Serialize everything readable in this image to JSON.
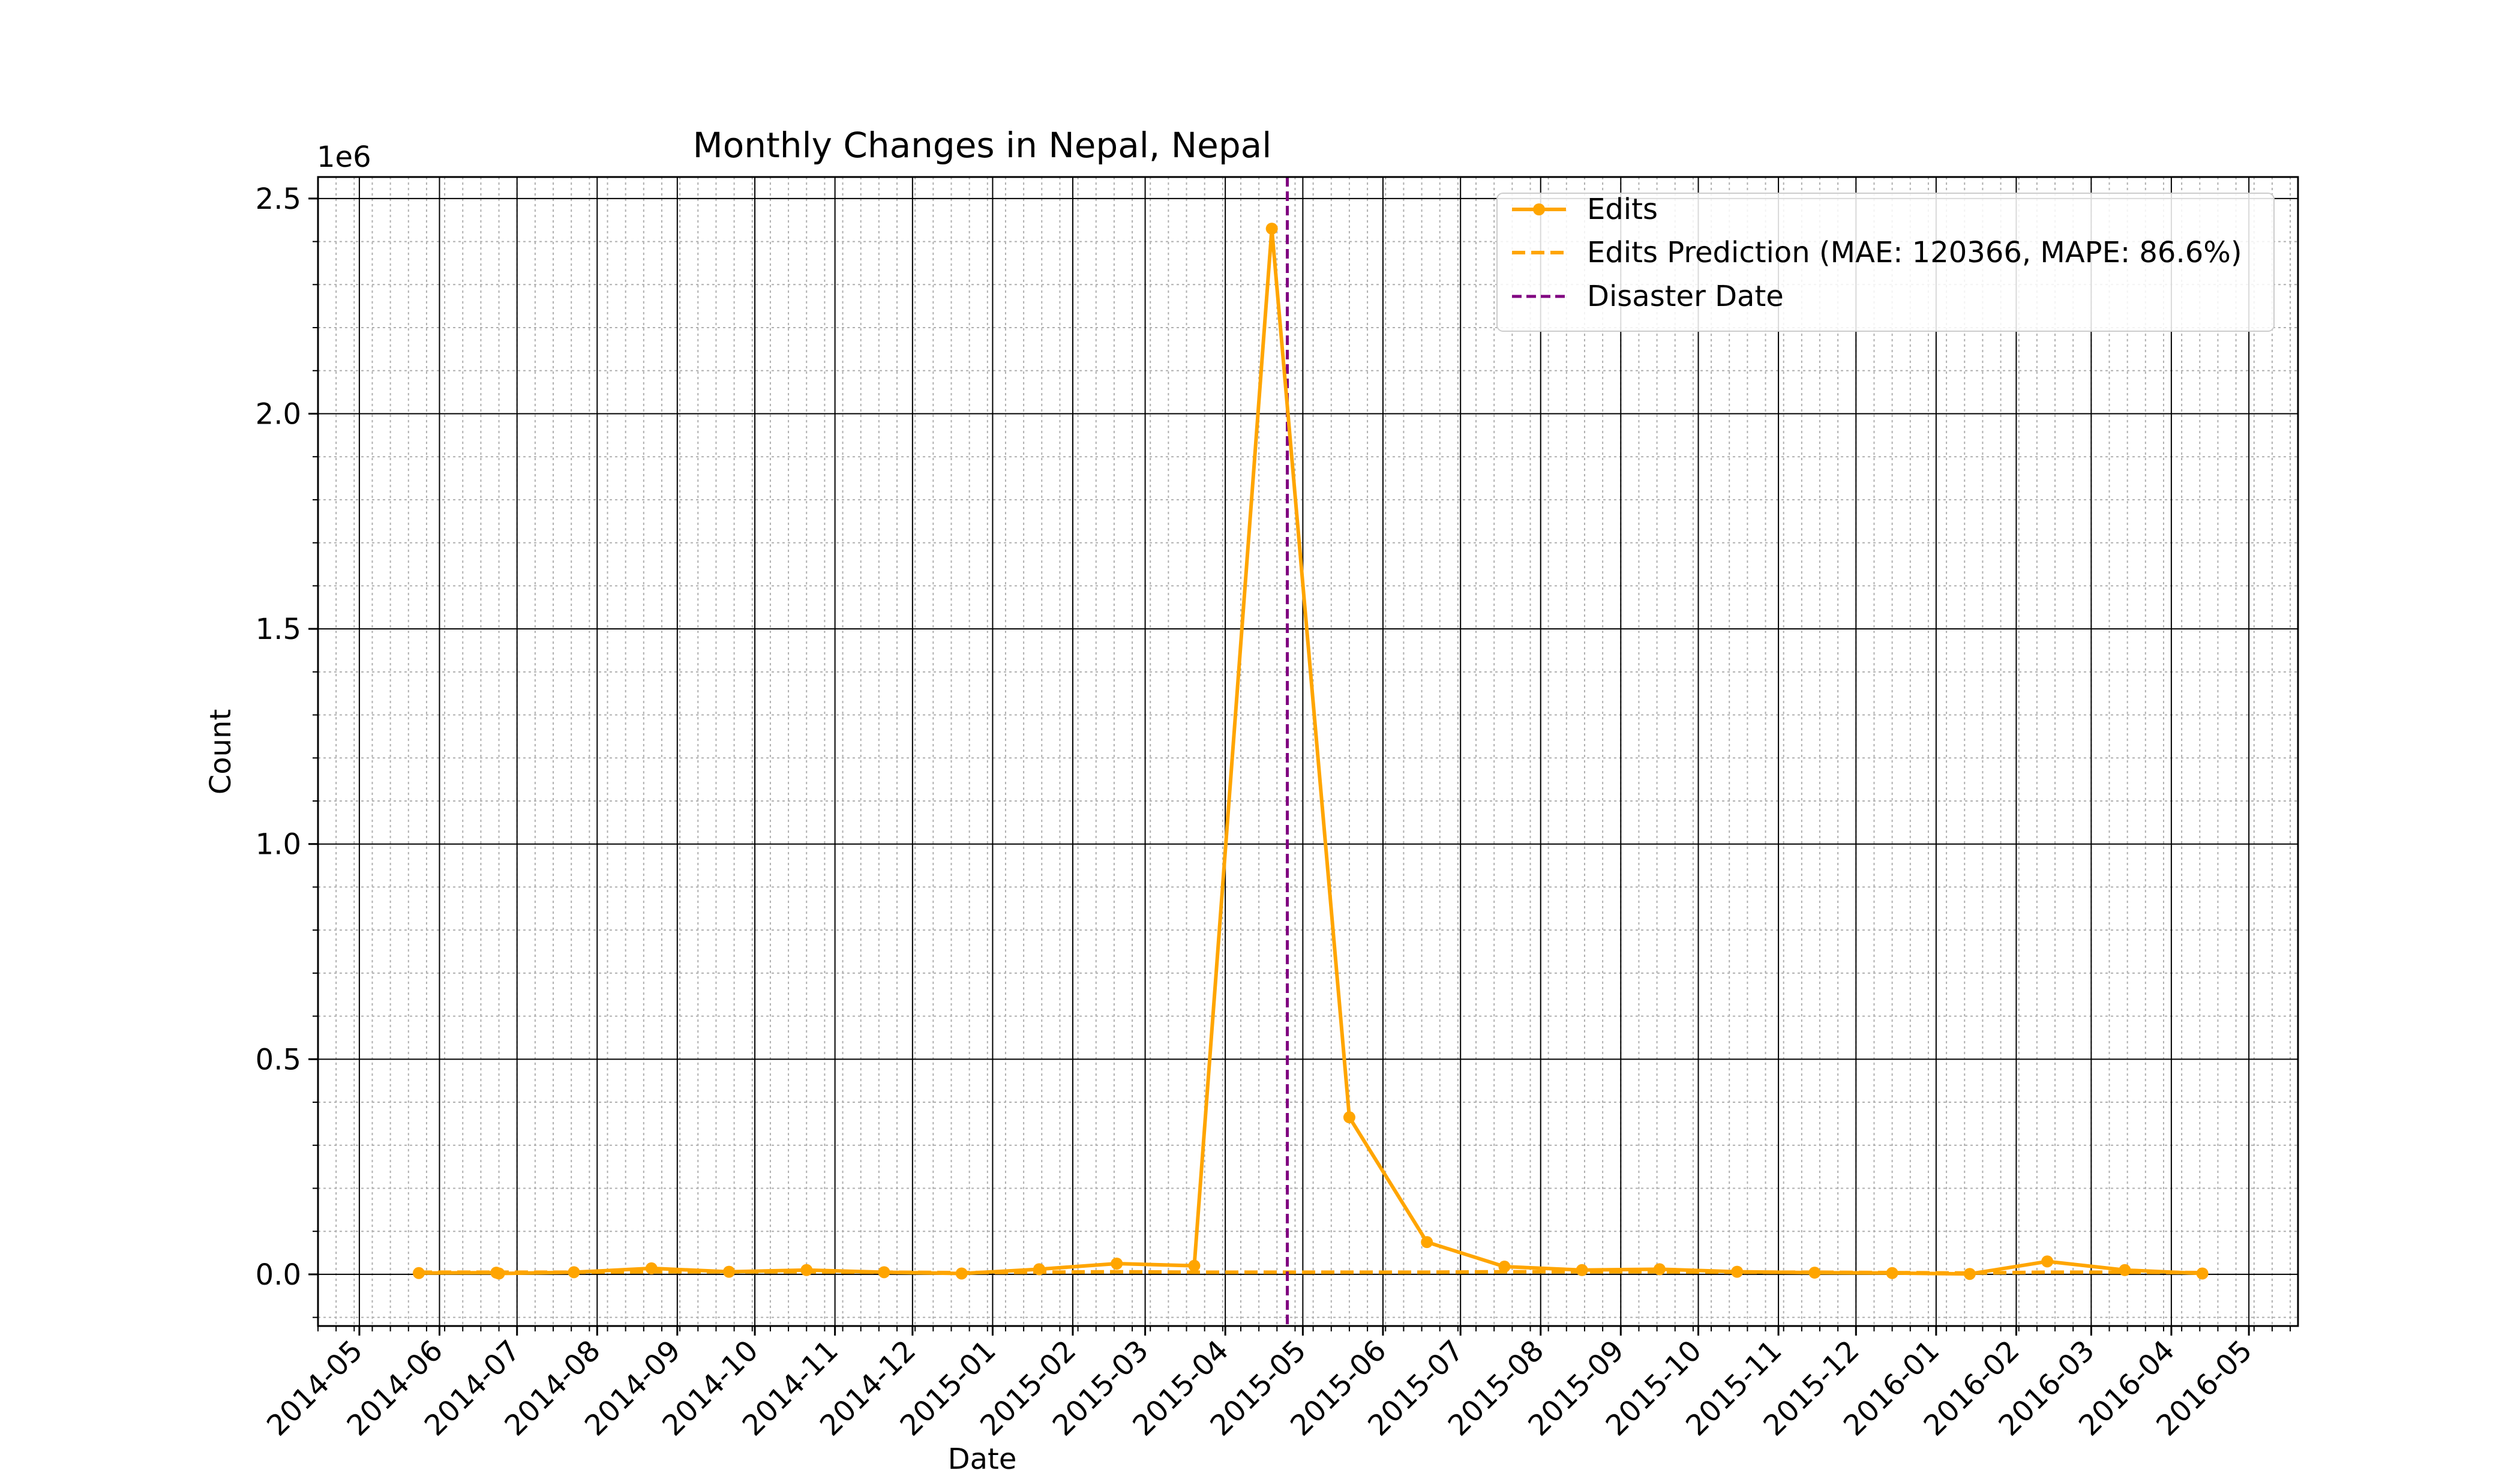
{
  "chart_data": {
    "type": "line",
    "title": "Monthly Changes in Nepal, Nepal",
    "xlabel": "Date",
    "ylabel": "Count",
    "y_offset_label": "1e6",
    "y_scale_factor": 1000000,
    "ylim": [
      -120000,
      2550000
    ],
    "xlim": [
      "2014-04-15",
      "2016-05-20"
    ],
    "x_tick_labels": [
      "2014-05",
      "2014-06",
      "2014-07",
      "2014-08",
      "2014-09",
      "2014-10",
      "2014-11",
      "2014-12",
      "2015-01",
      "2015-02",
      "2015-03",
      "2015-04",
      "2015-05",
      "2015-06",
      "2015-07",
      "2015-08",
      "2015-09",
      "2015-10",
      "2015-11",
      "2015-12",
      "2016-01",
      "2016-02",
      "2016-03",
      "2016-04",
      "2016-05"
    ],
    "y_ticks": [
      0,
      500000,
      1000000,
      1500000,
      2000000,
      2500000
    ],
    "y_tick_labels": [
      "0.0",
      "0.5",
      "1.0",
      "1.5",
      "2.0",
      "2.5"
    ],
    "grid": {
      "major": true,
      "minor": true
    },
    "legend_position": "top-right",
    "series": [
      {
        "name": "Edits",
        "style": "solid-marker",
        "color": "#FFA500",
        "x": [
          "2014-05-24",
          "2014-06-23",
          "2014-06-24",
          "2014-07-23",
          "2014-08-22",
          "2014-09-21",
          "2014-10-21",
          "2014-11-20",
          "2014-12-20",
          "2015-01-19",
          "2015-02-18",
          "2015-03-20",
          "2015-04-19",
          "2015-05-19",
          "2015-06-18",
          "2015-07-18",
          "2015-08-17",
          "2015-09-16",
          "2015-10-16",
          "2015-11-15",
          "2015-12-15",
          "2016-01-14",
          "2016-02-13",
          "2016-03-14",
          "2016-04-13"
        ],
        "values": [
          3000,
          4000,
          2000,
          5000,
          14000,
          6000,
          10000,
          5000,
          2000,
          12000,
          25000,
          20000,
          2430000,
          365000,
          75000,
          18000,
          10000,
          12000,
          6000,
          4000,
          3000,
          1000,
          30000,
          10000,
          2000
        ]
      },
      {
        "name": "Edits Prediction (MAE: 120366, MAPE: 86.6%)",
        "style": "dashed",
        "color": "#FFA500",
        "x": [
          "2014-05-24",
          "2014-06-23",
          "2014-07-23",
          "2014-08-22",
          "2014-09-21",
          "2014-10-21",
          "2014-11-20",
          "2014-12-20",
          "2015-01-19",
          "2015-02-18",
          "2015-03-20",
          "2015-04-19",
          "2015-05-19",
          "2015-06-18",
          "2015-07-18",
          "2015-08-17",
          "2015-09-16",
          "2015-10-16",
          "2015-11-15",
          "2015-12-15",
          "2016-01-14",
          "2016-02-13",
          "2016-03-14",
          "2016-04-13"
        ],
        "values": [
          5000,
          5000,
          5000,
          6000,
          6000,
          6000,
          5000,
          4000,
          5000,
          6000,
          5000,
          5000,
          5000,
          5000,
          6000,
          6000,
          6000,
          5000,
          5000,
          4000,
          3000,
          5000,
          5000,
          4000
        ]
      },
      {
        "name": "Disaster Date",
        "style": "vline-dashed",
        "color": "#800080",
        "x": "2015-04-25"
      }
    ]
  }
}
